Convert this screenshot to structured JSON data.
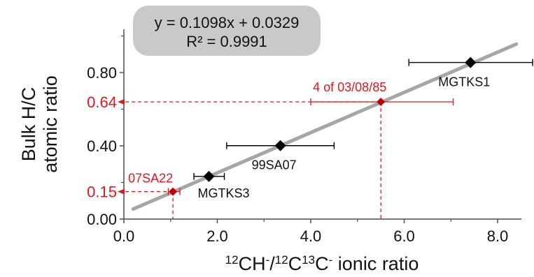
{
  "chart_data": {
    "type": "scatter",
    "xlabel": {
      "a": "12",
      "b": "CH",
      "c": "-",
      "d": "/",
      "e": "12",
      "f": "C",
      "g": "13",
      "h": "C",
      "i": "-",
      "j": " ionic ratio"
    },
    "ylabel": [
      "Bulk H/C",
      "atomic ratio"
    ],
    "xlim": [
      0,
      8
    ],
    "ylim": [
      0,
      1
    ],
    "xticks": [
      "0.0",
      "2.0",
      "4.0",
      "6.0",
      "8.0"
    ],
    "xtick_values": [
      0,
      2,
      4,
      6,
      8
    ],
    "yticks": [
      "0.00",
      "0.40",
      "0.80"
    ],
    "ytick_values": [
      0.0,
      0.4,
      0.8
    ],
    "grid": false,
    "fit": {
      "slope": 0.1098,
      "intercept": 0.0329,
      "x_range": [
        0.2,
        8.4
      ],
      "equation": "y = 0.1098x + 0.0329",
      "r2": "R² = 0.9991",
      "color": "#a6a6a6"
    },
    "points": [
      {
        "label": "MGTKS3",
        "x": 1.82,
        "y": 0.233,
        "xerr": [
          1.5,
          2.15
        ],
        "color": "#000000"
      },
      {
        "label": "99SA07",
        "x": 3.35,
        "y": 0.401,
        "xerr": [
          2.2,
          4.5
        ],
        "color": "#000000"
      },
      {
        "label": "MGTKS1",
        "x": 7.42,
        "y": 0.855,
        "xerr": [
          6.1,
          8.75
        ],
        "color": "#000000"
      }
    ],
    "reference_points": [
      {
        "label": "07SA22",
        "x": 1.05,
        "y": 0.15,
        "y_label": "0.15",
        "xerr": [
          0.95,
          1.2
        ],
        "color": "#c00000"
      },
      {
        "label": "4 of 03/08/85",
        "x": 5.5,
        "y": 0.64,
        "y_label": "0.64",
        "xerr": [
          4.0,
          7.05
        ],
        "color": "#c00000"
      }
    ],
    "reference_color": "#e8141c"
  }
}
